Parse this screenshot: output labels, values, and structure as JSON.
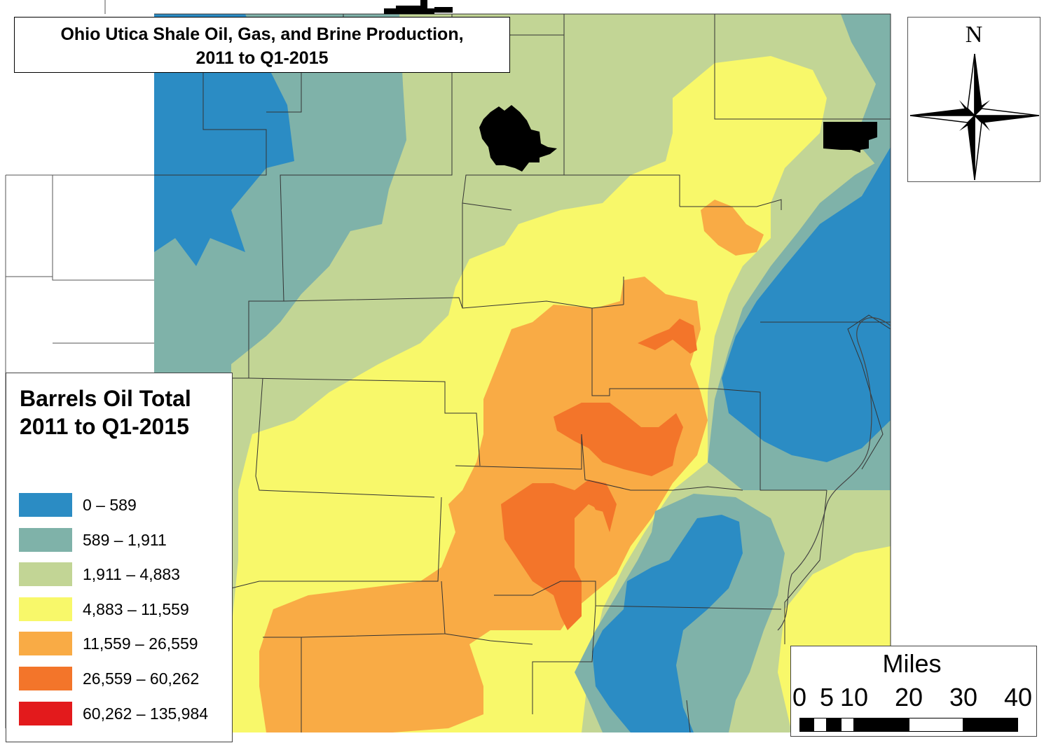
{
  "title": {
    "line1": "Ohio Utica Shale Oil, Gas, and Brine Production,",
    "line2": "2011 to Q1-2015"
  },
  "north_arrow": {
    "letter": "N",
    "icon": "compass-rose-icon"
  },
  "legend": {
    "title_line1": "Barrels Oil Total",
    "title_line2": "2011 to Q1-2015",
    "classes": [
      {
        "label": "0 – 589",
        "color": "#2b8cc4"
      },
      {
        "label": "589 – 1,911",
        "color": "#7fb2a9"
      },
      {
        "label": "1,911 – 4,883",
        "color": "#c2d595"
      },
      {
        "label": "4,883 – 11,559",
        "color": "#f8f86a"
      },
      {
        "label": "11,559 – 26,559",
        "color": "#f9ab45"
      },
      {
        "label": "26,559 – 60,262",
        "color": "#f3752a"
      },
      {
        "label": "60,262 – 135,984",
        "color": "#e31a1c"
      }
    ]
  },
  "scale_bar": {
    "title": "Miles",
    "ticks": [
      "0",
      "5",
      "10",
      "20",
      "30",
      "40"
    ]
  },
  "colors": {
    "county_lines": "#333333",
    "urban_areas": "#000000",
    "outside_area": "#ffffff"
  }
}
